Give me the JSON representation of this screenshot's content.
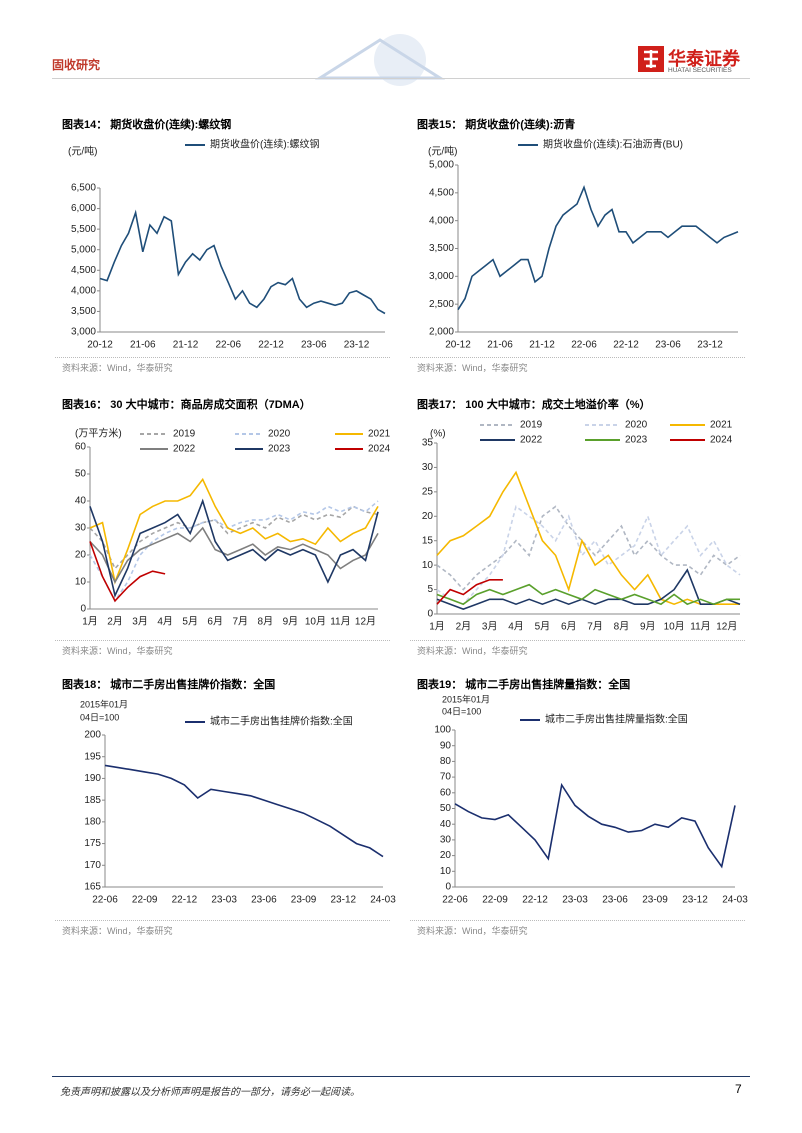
{
  "header": {
    "section": "固收研究",
    "logo_cn": "华泰证券",
    "logo_en": "HUATAI SECURITIES"
  },
  "footer": {
    "disclaimer": "免责声明和披露以及分析师声明是报告的一部分，请务必一起阅读。",
    "page": 7
  },
  "chart_data": [
    {
      "type": "line",
      "title": "图表14：  期货收盘价(连续):螺纹钢",
      "source": "资料来源：Wind，华泰研究",
      "ylabel": "(元/吨)",
      "x": [
        "20-12",
        "21-01",
        "21-02",
        "21-03",
        "21-04",
        "21-05",
        "21-06",
        "21-07",
        "21-08",
        "21-09",
        "21-10",
        "21-11",
        "21-12",
        "22-01",
        "22-02",
        "22-03",
        "22-04",
        "22-05",
        "22-06",
        "22-07",
        "22-08",
        "22-09",
        "22-10",
        "22-11",
        "22-12",
        "23-01",
        "23-02",
        "23-03",
        "23-04",
        "23-05",
        "23-06",
        "23-07",
        "23-08",
        "23-09",
        "23-10",
        "23-11",
        "23-12",
        "24-01",
        "24-02",
        "24-03",
        "24-04"
      ],
      "xticks": [
        "20-12",
        "21-06",
        "21-12",
        "22-06",
        "22-12",
        "23-06",
        "23-12"
      ],
      "series": [
        {
          "name": "期货收盘价(连续):螺纹钢",
          "color": "#1f4e79",
          "values": [
            4300,
            4250,
            4700,
            5100,
            5400,
            5900,
            4950,
            5600,
            5400,
            5800,
            5700,
            4400,
            4700,
            4900,
            4750,
            5000,
            5100,
            4600,
            4200,
            3800,
            4000,
            3700,
            3600,
            3800,
            4100,
            4200,
            4150,
            4300,
            3800,
            3600,
            3700,
            3750,
            3700,
            3650,
            3700,
            3950,
            4000,
            3900,
            3800,
            3550,
            3450
          ]
        }
      ],
      "ylim": [
        3000,
        6500
      ],
      "yticks": [
        {
          "value": 3000,
          "label": "3,000"
        },
        {
          "value": 3500,
          "label": "3,500"
        },
        {
          "value": 4000,
          "label": "4,000"
        },
        {
          "value": 4500,
          "label": "4,500"
        },
        {
          "value": 5000,
          "label": "5,000"
        },
        {
          "value": 5500,
          "label": "5,500"
        },
        {
          "value": 6000,
          "label": "6,000"
        },
        {
          "value": 6500,
          "label": "6,500"
        }
      ]
    },
    {
      "type": "line",
      "title": "图表15：  期货收盘价(连续):沥青",
      "source": "资料来源：Wind，华泰研究",
      "ylabel": "(元/吨)",
      "x": [
        "20-12",
        "21-01",
        "21-02",
        "21-03",
        "21-04",
        "21-05",
        "21-06",
        "21-07",
        "21-08",
        "21-09",
        "21-10",
        "21-11",
        "21-12",
        "22-01",
        "22-02",
        "22-03",
        "22-04",
        "22-05",
        "22-06",
        "22-07",
        "22-08",
        "22-09",
        "22-10",
        "22-11",
        "22-12",
        "23-01",
        "23-02",
        "23-03",
        "23-04",
        "23-05",
        "23-06",
        "23-07",
        "23-08",
        "23-09",
        "23-10",
        "23-11",
        "23-12",
        "24-01",
        "24-02",
        "24-03",
        "24-04"
      ],
      "xticks": [
        "20-12",
        "21-06",
        "21-12",
        "22-06",
        "22-12",
        "23-06",
        "23-12"
      ],
      "series": [
        {
          "name": "期货收盘价(连续):石油沥青(BU)",
          "color": "#1f4e79",
          "values": [
            2400,
            2600,
            3000,
            3100,
            3200,
            3300,
            3000,
            3100,
            3200,
            3300,
            3300,
            2900,
            3000,
            3500,
            3900,
            4100,
            4200,
            4300,
            4600,
            4200,
            3900,
            4100,
            4200,
            3800,
            3800,
            3600,
            3700,
            3800,
            3800,
            3800,
            3700,
            3800,
            3900,
            3900,
            3900,
            3800,
            3700,
            3600,
            3700,
            3750,
            3800
          ]
        }
      ],
      "ylim": [
        2000,
        5000
      ],
      "yticks": [
        {
          "value": 2000,
          "label": "2,000"
        },
        {
          "value": 2500,
          "label": "2,500"
        },
        {
          "value": 3000,
          "label": "3,000"
        },
        {
          "value": 3500,
          "label": "3,500"
        },
        {
          "value": 4000,
          "label": "4,000"
        },
        {
          "value": 4500,
          "label": "4,500"
        },
        {
          "value": 5000,
          "label": "5,000"
        }
      ]
    },
    {
      "type": "line",
      "title": "图表16：  30 大中城市：商品房成交面积（7DMA）",
      "source": "资料来源：Wind，华泰研究",
      "ylabel": "(万平方米)",
      "categories": [
        "1月",
        null,
        "2月",
        null,
        "3月",
        null,
        "4月",
        null,
        "5月",
        null,
        "6月",
        null,
        "7月",
        null,
        "8月",
        null,
        "9月",
        null,
        "10月",
        null,
        "11月",
        null,
        "12月",
        null
      ],
      "series": [
        {
          "name": "2019",
          "color": "#a6a6a6",
          "dash": true,
          "values": [
            30,
            25,
            15,
            20,
            25,
            28,
            30,
            32,
            30,
            32,
            33,
            28,
            30,
            32,
            30,
            34,
            32,
            35,
            33,
            35,
            34,
            38,
            36,
            35
          ]
        },
        {
          "name": "2020",
          "color": "#b4c7e7",
          "dash": true,
          "values": [
            20,
            12,
            3,
            10,
            20,
            25,
            28,
            30,
            30,
            32,
            33,
            30,
            32,
            33,
            33,
            35,
            33,
            36,
            35,
            38,
            36,
            38,
            36,
            40
          ]
        },
        {
          "name": "2021",
          "color": "#f5b800",
          "values": [
            30,
            32,
            10,
            22,
            35,
            38,
            40,
            40,
            42,
            48,
            38,
            30,
            28,
            30,
            26,
            28,
            25,
            26,
            24,
            30,
            25,
            28,
            30,
            38
          ]
        },
        {
          "name": "2022",
          "color": "#7f7f7f",
          "values": [
            25,
            20,
            10,
            18,
            22,
            24,
            26,
            28,
            25,
            30,
            22,
            20,
            22,
            24,
            20,
            23,
            22,
            24,
            22,
            20,
            15,
            18,
            20,
            28
          ]
        },
        {
          "name": "2023",
          "color": "#1f3864",
          "values": [
            38,
            25,
            5,
            15,
            28,
            30,
            32,
            35,
            28,
            40,
            25,
            18,
            20,
            22,
            18,
            22,
            20,
            22,
            20,
            10,
            20,
            22,
            18,
            36
          ]
        },
        {
          "name": "2024",
          "color": "#c00000",
          "values": [
            25,
            12,
            3,
            8,
            12,
            14,
            13,
            null,
            null,
            null,
            null,
            null,
            null,
            null,
            null,
            null,
            null,
            null,
            null,
            null,
            null,
            null,
            null,
            null
          ]
        }
      ],
      "ylim": [
        0,
        60
      ],
      "yticks": [
        0,
        10,
        20,
        30,
        40,
        50,
        60
      ]
    },
    {
      "type": "line",
      "title": "图表17：  100 大中城市：成交土地溢价率（%）",
      "source": "资料来源：Wind，华泰研究",
      "ylabel": "(%)",
      "categories": [
        "1月",
        null,
        "2月",
        null,
        "3月",
        null,
        "4月",
        null,
        "5月",
        null,
        "6月",
        null,
        "7月",
        null,
        "8月",
        null,
        "9月",
        null,
        "10月",
        null,
        "11月",
        null,
        "12月",
        null
      ],
      "series": [
        {
          "name": "2019",
          "color": "#b0b7c3",
          "dash": true,
          "values": [
            10,
            8,
            5,
            8,
            10,
            12,
            15,
            12,
            20,
            22,
            18,
            15,
            12,
            15,
            18,
            12,
            15,
            12,
            10,
            10,
            8,
            12,
            10,
            12
          ]
        },
        {
          "name": "2020",
          "color": "#c9d3e8",
          "dash": true,
          "values": [
            5,
            3,
            2,
            5,
            8,
            12,
            22,
            20,
            18,
            15,
            20,
            12,
            15,
            10,
            12,
            14,
            20,
            12,
            15,
            18,
            12,
            15,
            10,
            8
          ]
        },
        {
          "name": "2021",
          "color": "#f5b800",
          "values": [
            12,
            15,
            16,
            18,
            20,
            25,
            29,
            22,
            15,
            12,
            5,
            15,
            10,
            12,
            8,
            5,
            8,
            3,
            2,
            3,
            2,
            2,
            2,
            2
          ]
        },
        {
          "name": "2022",
          "color": "#1f3864",
          "values": [
            3,
            2,
            1,
            2,
            3,
            3,
            2,
            3,
            2,
            3,
            2,
            3,
            2,
            3,
            3,
            2,
            2,
            3,
            5,
            9,
            2,
            2,
            3,
            2
          ]
        },
        {
          "name": "2023",
          "color": "#5aa02c",
          "values": [
            4,
            3,
            2,
            4,
            5,
            4,
            5,
            6,
            4,
            5,
            4,
            3,
            5,
            4,
            3,
            4,
            3,
            2,
            4,
            2,
            3,
            2,
            3,
            3
          ]
        },
        {
          "name": "2024",
          "color": "#c00000",
          "values": [
            2,
            5,
            4,
            6,
            7,
            7,
            null,
            null,
            null,
            null,
            null,
            null,
            null,
            null,
            null,
            null,
            null,
            null,
            null,
            null,
            null,
            null,
            null,
            null
          ]
        }
      ],
      "ylim": [
        0,
        35
      ],
      "yticks": [
        0,
        5,
        10,
        15,
        20,
        25,
        30,
        35
      ]
    },
    {
      "type": "line",
      "title": "图表18：  城市二手房出售挂牌价指数：全国",
      "source": "资料来源：Wind，华泰研究",
      "ylabel": [
        "2015年01月",
        "04日=100"
      ],
      "x": [
        "22-06",
        "22-07",
        "22-08",
        "22-09",
        "22-10",
        "22-11",
        "22-12",
        "23-01",
        "23-02",
        "23-03",
        "23-04",
        "23-05",
        "23-06",
        "23-07",
        "23-08",
        "23-09",
        "23-10",
        "23-11",
        "23-12",
        "24-01",
        "24-02",
        "24-03"
      ],
      "xticks": [
        "22-06",
        "22-09",
        "22-12",
        "23-03",
        "23-06",
        "23-09",
        "23-12",
        "24-03"
      ],
      "series": [
        {
          "name": "城市二手房出售挂牌价指数:全国",
          "color": "#1b2f6e",
          "values": [
            193,
            192.5,
            192,
            191.5,
            191,
            190,
            188.5,
            185.5,
            187.5,
            187,
            186.5,
            186,
            185,
            184,
            183,
            182,
            180.5,
            179,
            177,
            175,
            174,
            172
          ]
        }
      ],
      "ylim": [
        165,
        200
      ],
      "yticks": [
        165,
        170,
        175,
        180,
        185,
        190,
        195,
        200
      ]
    },
    {
      "type": "line",
      "title": "图表19：  城市二手房出售挂牌量指数：全国",
      "source": "资料来源：Wind，华泰研究",
      "ylabel": [
        "2015年01月",
        "04日=100"
      ],
      "x": [
        "22-06",
        "22-07",
        "22-08",
        "22-09",
        "22-10",
        "22-11",
        "22-12",
        "23-01",
        "23-02",
        "23-03",
        "23-04",
        "23-05",
        "23-06",
        "23-07",
        "23-08",
        "23-09",
        "23-10",
        "23-11",
        "23-12",
        "24-01",
        "24-02",
        "24-03"
      ],
      "xticks": [
        "22-06",
        "22-09",
        "22-12",
        "23-03",
        "23-06",
        "23-09",
        "23-12",
        "24-03"
      ],
      "series": [
        {
          "name": "城市二手房出售挂牌量指数:全国",
          "color": "#1b2f6e",
          "values": [
            53,
            48,
            44,
            43,
            46,
            38,
            30,
            18,
            65,
            52,
            45,
            40,
            38,
            35,
            36,
            40,
            38,
            44,
            42,
            25,
            13,
            52
          ]
        }
      ],
      "ylim": [
        0,
        100
      ],
      "yticks": [
        0,
        10,
        20,
        30,
        40,
        50,
        60,
        70,
        80,
        90,
        100
      ]
    }
  ]
}
